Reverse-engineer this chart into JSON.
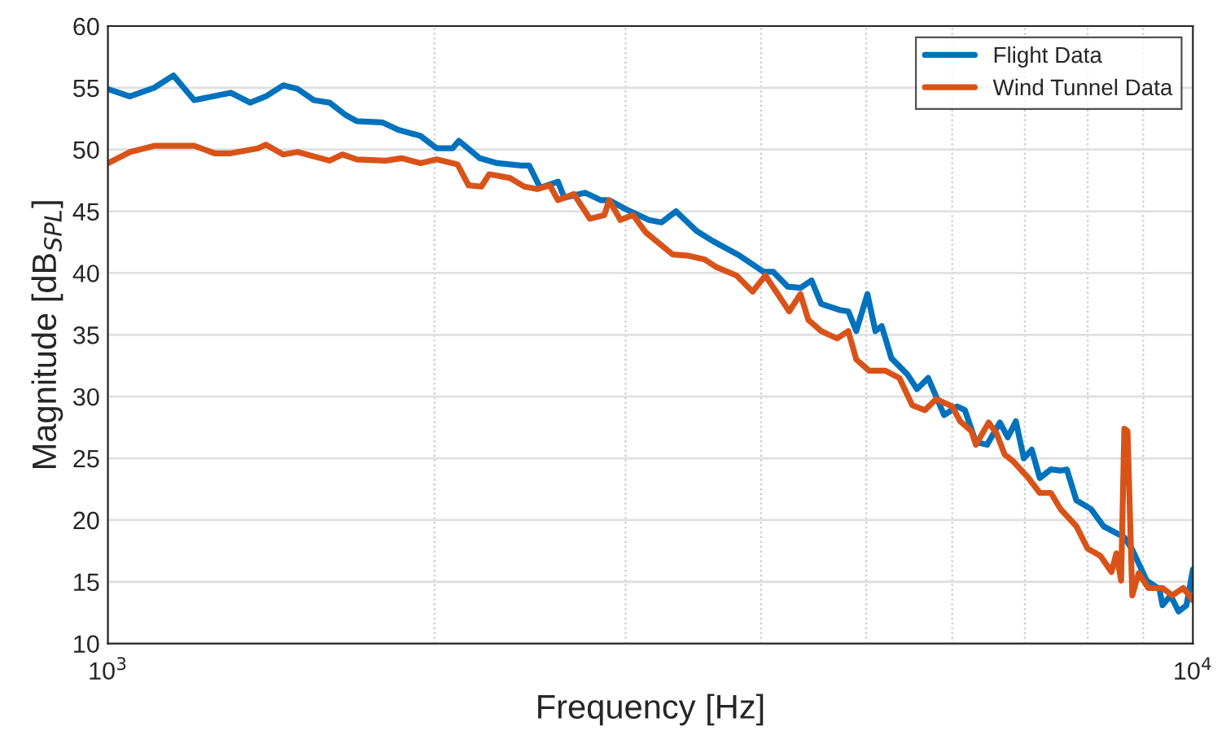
{
  "chart_data": {
    "type": "line",
    "xlabel": "Frequency [Hz]",
    "ylabel": "Magnitude [dB$_{SPL}$]",
    "log": "x",
    "grid": true,
    "legend": "top right",
    "line_style": "solid",
    "xlim": [
      1000,
      10000
    ],
    "xticks": [
      {
        "value": 1000,
        "label": "10$^{3}$"
      },
      {
        "value": 10000,
        "label": "10$^{4}$"
      }
    ],
    "ylim": [
      10,
      60
    ],
    "yticks": [
      10,
      15,
      20,
      25,
      30,
      35,
      40,
      45,
      50,
      55,
      60
    ],
    "series": [
      {
        "name": "Flight Data",
        "color": "#0072bd",
        "x": [
          1000,
          1048,
          1103,
          1149,
          1201,
          1298,
          1352,
          1398,
          1451,
          1496,
          1548,
          1601,
          1656,
          1696,
          1790,
          1852,
          1942,
          2009,
          2078,
          2106,
          2201,
          2285,
          2404,
          2445,
          2503,
          2599,
          2634,
          2753,
          2848,
          2897,
          2997,
          3152,
          3238,
          3339,
          3489,
          3609,
          3823,
          4022,
          4105,
          4232,
          4348,
          4452,
          4544,
          4732,
          4813,
          4895,
          5012,
          5098,
          5167,
          5274,
          5456,
          5568,
          5702,
          5898,
          6061,
          6164,
          6310,
          6461,
          6639,
          6752,
          6868,
          6985,
          7104,
          7225,
          7398,
          7550,
          7652,
          7809,
          8053,
          8272,
          8646,
          8793,
          9066,
          9314,
          9377,
          9537,
          9700,
          9865,
          10000
        ],
        "values": [
          54.9,
          54.3,
          55.0,
          56.0,
          54.0,
          54.6,
          53.8,
          54.3,
          55.2,
          54.9,
          54.0,
          53.8,
          52.8,
          52.3,
          52.2,
          51.6,
          51.1,
          50.1,
          50.1,
          50.7,
          49.3,
          48.9,
          48.7,
          48.7,
          46.9,
          47.4,
          46.1,
          46.5,
          45.9,
          45.9,
          45.2,
          44.3,
          44.1,
          45.0,
          43.4,
          42.6,
          41.4,
          40.1,
          40.1,
          38.9,
          38.8,
          39.4,
          37.5,
          37.0,
          36.9,
          35.3,
          38.3,
          35.3,
          35.7,
          33.1,
          31.8,
          30.6,
          31.5,
          28.5,
          29.2,
          28.9,
          26.3,
          26.1,
          27.9,
          26.7,
          28.0,
          25.0,
          25.7,
          23.4,
          24.1,
          24.0,
          24.1,
          21.6,
          20.9,
          19.5,
          18.6,
          17.6,
          15.1,
          14.4,
          13.1,
          13.9,
          12.6,
          13.1,
          16.0
        ]
      },
      {
        "name": "Wind Tunnel Data",
        "color": "#d95319",
        "x": [
          1000,
          1048,
          1103,
          1181,
          1201,
          1254,
          1298,
          1375,
          1398,
          1451,
          1496,
          1601,
          1645,
          1696,
          1803,
          1865,
          1942,
          2009,
          2100,
          2150,
          2209,
          2246,
          2347,
          2420,
          2487,
          2555,
          2599,
          2688,
          2781,
          2868,
          2897,
          2967,
          3048,
          3131,
          3316,
          3430,
          3548,
          3634,
          3797,
          3928,
          4036,
          4246,
          4348,
          4422,
          4544,
          4700,
          4813,
          4895,
          5029,
          5203,
          5364,
          5512,
          5663,
          5799,
          5999,
          6102,
          6249,
          6310,
          6483,
          6594,
          6707,
          6821,
          7055,
          7225,
          7398,
          7550,
          7809,
          7997,
          8217,
          8414,
          8500,
          8587,
          8646,
          8705,
          8793,
          8913,
          9096,
          9377,
          9570,
          9799,
          10000
        ],
        "values": [
          48.9,
          49.8,
          50.3,
          50.3,
          50.3,
          49.7,
          49.7,
          50.1,
          50.4,
          49.6,
          49.8,
          49.1,
          49.6,
          49.2,
          49.1,
          49.3,
          48.9,
          49.2,
          48.8,
          47.1,
          47.0,
          48.0,
          47.7,
          47.0,
          46.8,
          47.1,
          45.9,
          46.4,
          44.4,
          44.7,
          45.9,
          44.3,
          44.7,
          43.3,
          41.5,
          41.4,
          41.1,
          40.5,
          39.8,
          38.5,
          39.8,
          36.9,
          38.3,
          36.2,
          35.3,
          34.7,
          35.3,
          33.0,
          32.1,
          32.1,
          31.5,
          29.3,
          28.9,
          29.8,
          29.2,
          28.0,
          27.2,
          26.1,
          27.9,
          27.0,
          25.3,
          24.8,
          23.4,
          22.2,
          22.2,
          20.9,
          19.5,
          17.7,
          17.1,
          15.8,
          17.3,
          15.1,
          27.4,
          27.2,
          13.9,
          15.7,
          14.5,
          14.5,
          13.9,
          14.5,
          13.5
        ]
      }
    ]
  }
}
